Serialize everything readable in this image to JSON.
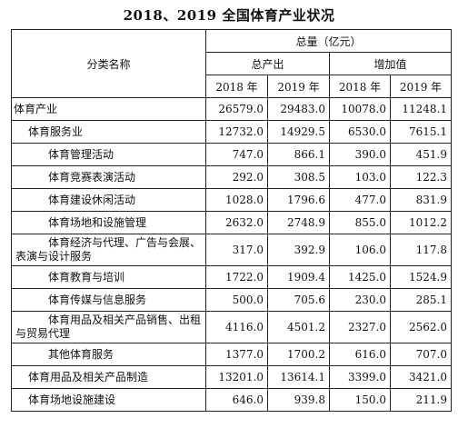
{
  "title": "2018、2019 全国体育产业状况",
  "header": {
    "category": "分类名称",
    "total": "总量（亿元）",
    "output": "总产出",
    "value_added": "增加值",
    "y2018": "2018 年",
    "y2019": "2019 年",
    "y2018b": "2018 年",
    "y2019b": "2019 年"
  },
  "rows": [
    {
      "name": "体育产业",
      "o2018": "26579.0",
      "o2019": "29483.0",
      "v2018": "10078.0",
      "v2019": "11248.1"
    },
    {
      "name": "体育服务业",
      "o2018": "12732.0",
      "o2019": "14929.5",
      "v2018": "6530.0",
      "v2019": "7615.1"
    },
    {
      "name": "体育管理活动",
      "o2018": "747.0",
      "o2019": "866.1",
      "v2018": "390.0",
      "v2019": "451.9"
    },
    {
      "name": "体育竞赛表演活动",
      "o2018": "292.0",
      "o2019": "308.5",
      "v2018": "103.0",
      "v2019": "122.3"
    },
    {
      "name": "体育建设休闲活动",
      "o2018": "1028.0",
      "o2019": "1796.6",
      "v2018": "477.0",
      "v2019": "831.9"
    },
    {
      "name": "体育场地和设施管理",
      "o2018": "2632.0",
      "o2019": "2748.9",
      "v2018": "855.0",
      "v2019": "1012.2"
    },
    {
      "name": "体育经济与代理、广告与会展、表演与设计服务",
      "o2018": "317.0",
      "o2019": "392.9",
      "v2018": "106.0",
      "v2019": "117.8"
    },
    {
      "name": "体育教育与培训",
      "o2018": "1722.0",
      "o2019": "1909.4",
      "v2018": "1425.0",
      "v2019": "1524.9"
    },
    {
      "name": "体育传媒与信息服务",
      "o2018": "500.0",
      "o2019": "705.6",
      "v2018": "230.0",
      "v2019": "285.1"
    },
    {
      "name": "体育用品及相关产品销售、出租与贸易代理",
      "o2018": "4116.0",
      "o2019": "4501.2",
      "v2018": "2327.0",
      "v2019": "2562.0"
    },
    {
      "name": "其他体育服务",
      "o2018": "1377.0",
      "o2019": "1700.2",
      "v2018": "616.0",
      "v2019": "707.0"
    },
    {
      "name": "体育用品及相关产品制造",
      "o2018": "13201.0",
      "o2019": "13614.1",
      "v2018": "3399.0",
      "v2019": "3421.0"
    },
    {
      "name": "体育场地设施建设",
      "o2018": "646.0",
      "o2019": "939.8",
      "v2018": "150.0",
      "v2019": "211.9"
    }
  ]
}
